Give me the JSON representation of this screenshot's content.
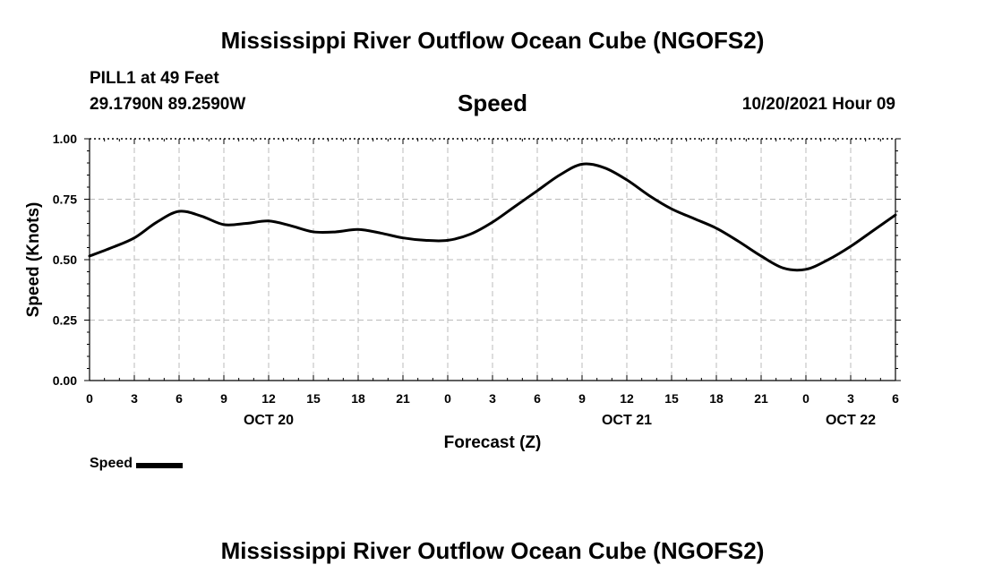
{
  "header": {
    "title": "Mississippi River Outflow Ocean Cube (NGOFS2)",
    "station": "PILL1 at 49 Feet",
    "coords": "29.1790N  89.2590W",
    "subtitle": "Speed",
    "datetime": "10/20/2021 Hour 09"
  },
  "footer": {
    "title": "Mississippi River Outflow Ocean Cube (NGOFS2)"
  },
  "chart_data": {
    "type": "line",
    "title": "Speed",
    "xlabel": "Forecast (Z)",
    "ylabel": "Speed (Knots)",
    "xlim": [
      0,
      54
    ],
    "ylim": [
      0,
      1
    ],
    "grid": true,
    "yticks": [
      0,
      0.25,
      0.5,
      0.75,
      1.0
    ],
    "ytick_labels": [
      "0.00",
      "0.25",
      "0.50",
      "0.75",
      "1.00"
    ],
    "xticks": [
      0,
      3,
      6,
      9,
      12,
      15,
      18,
      21,
      24,
      27,
      30,
      33,
      36,
      39,
      42,
      45,
      48,
      51,
      54
    ],
    "xtick_labels": [
      "0",
      "3",
      "6",
      "9",
      "12",
      "15",
      "18",
      "21",
      "0",
      "3",
      "6",
      "9",
      "12",
      "15",
      "18",
      "21",
      "0",
      "3",
      "6"
    ],
    "date_labels": [
      {
        "hour": 12,
        "label": "OCT 20"
      },
      {
        "hour": 36,
        "label": "OCT 21"
      },
      {
        "hour": 51,
        "label": "OCT 22"
      }
    ],
    "legend": {
      "label": "Speed",
      "position": "bottom-left"
    },
    "series": [
      {
        "name": "Speed",
        "x": [
          0,
          1.5,
          3,
          4.5,
          6,
          7.5,
          9,
          10.5,
          12,
          13.5,
          15,
          16.5,
          18,
          19.5,
          21,
          22.5,
          24,
          25.5,
          27,
          28.5,
          30,
          31.5,
          33,
          34.5,
          36,
          37.5,
          39,
          40.5,
          42,
          43.5,
          45,
          46.5,
          48,
          49.5,
          51,
          52.5,
          54
        ],
        "values": [
          0.515,
          0.55,
          0.59,
          0.655,
          0.7,
          0.68,
          0.645,
          0.65,
          0.66,
          0.64,
          0.615,
          0.615,
          0.625,
          0.61,
          0.59,
          0.58,
          0.58,
          0.605,
          0.655,
          0.72,
          0.785,
          0.85,
          0.895,
          0.88,
          0.83,
          0.765,
          0.71,
          0.67,
          0.63,
          0.575,
          0.515,
          0.465,
          0.46,
          0.5,
          0.555,
          0.62,
          0.685
        ]
      }
    ]
  }
}
